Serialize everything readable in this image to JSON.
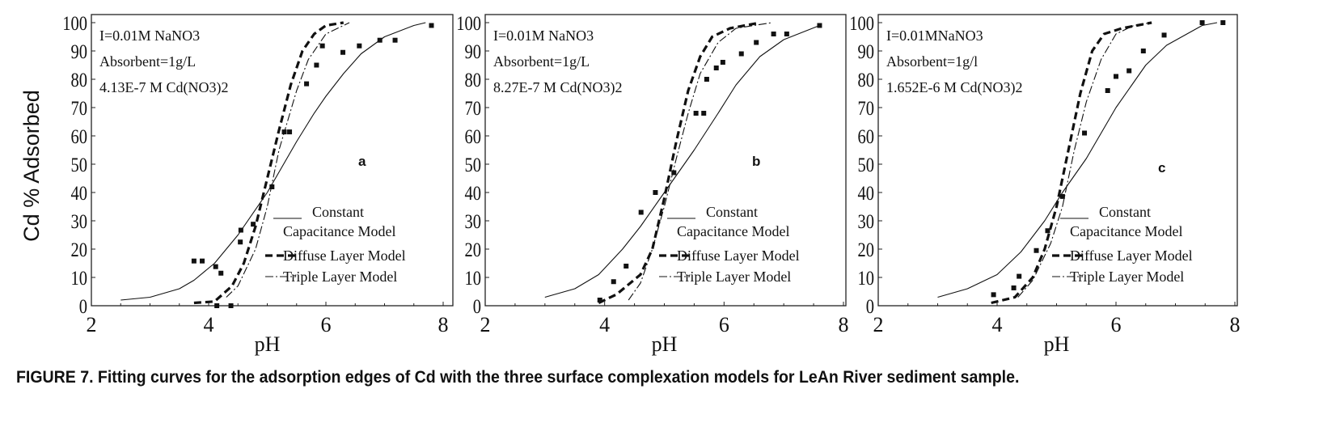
{
  "caption": "FIGURE 7.  Fitting curves for the adsorption edges of Cd with the three surface complexation models for LeAn River sediment sample.",
  "chart_data": [
    {
      "type": "line",
      "panel_label": "a",
      "ylabel": "Cd % Adsorbed",
      "xlabel": "pH",
      "xlim": [
        2,
        8
      ],
      "ylim": [
        0,
        100
      ],
      "xticks": [
        "2",
        "4",
        "6",
        "8"
      ],
      "yticks": [
        "0",
        "10",
        "20",
        "30",
        "40",
        "50",
        "60",
        "70",
        "80",
        "90",
        "100"
      ],
      "annotations": [
        "I=0.01M NaNO3",
        "Absorbent=1g/L",
        "4.13E-7 M Cd(NO3)2"
      ],
      "legend": {
        "position": "bottom-right",
        "entries": [
          "Constant",
          "Capacitance Model",
          "Diffuse Layer Model",
          "Triple Layer Model"
        ]
      },
      "points": {
        "name": "Experimental",
        "x": [
          3.75,
          3.89,
          4.12,
          4.21,
          4.14,
          4.38,
          4.55,
          4.54,
          4.76,
          5.08,
          5.29,
          5.38,
          5.67,
          5.84,
          5.94,
          6.29,
          6.57,
          6.92,
          7.18,
          7.8
        ],
        "y": [
          15.8,
          15.8,
          13.8,
          11.5,
          0,
          0,
          26.7,
          22.5,
          28.8,
          42,
          61.4,
          61.4,
          78.4,
          85,
          91.8,
          89.5,
          91.8,
          93.8,
          93.8,
          99
        ]
      },
      "series": [
        {
          "name": "Constant Capacitance Model",
          "style": "solid",
          "x": [
            2.5,
            3.0,
            3.5,
            3.75,
            4.1,
            4.5,
            5.0,
            5.5,
            5.8,
            6.0,
            6.3,
            6.6,
            7.0,
            7.5,
            7.7
          ],
          "y": [
            2,
            3,
            6,
            9,
            15,
            25,
            40,
            58,
            68,
            74,
            82,
            89,
            95,
            99,
            100
          ]
        },
        {
          "name": "Diffuse Layer Model",
          "style": "dashed",
          "x": [
            3.75,
            4.1,
            4.4,
            4.6,
            4.8,
            5.0,
            5.2,
            5.4,
            5.6,
            5.8,
            6.0,
            6.3
          ],
          "y": [
            1,
            1.5,
            7,
            15,
            28,
            45,
            62,
            78,
            90,
            96,
            99,
            100
          ]
        },
        {
          "name": "Triple Layer Model",
          "style": "dashdot",
          "x": [
            4.3,
            4.5,
            4.8,
            5.0,
            5.2,
            5.5,
            5.7,
            6.0,
            6.4
          ],
          "y": [
            3,
            7,
            20,
            35,
            55,
            76,
            87,
            96,
            100
          ]
        }
      ]
    },
    {
      "type": "line",
      "panel_label": "b",
      "xlabel": "pH",
      "xlim": [
        2,
        8
      ],
      "ylim": [
        0,
        100
      ],
      "xticks": [
        "2",
        "4",
        "6",
        "8"
      ],
      "yticks": [
        "0",
        "10",
        "20",
        "30",
        "40",
        "50",
        "60",
        "70",
        "80",
        "90",
        "100"
      ],
      "annotations": [
        "I=0.01M NaNO3",
        "Absorbent=1g/L",
        "8.27E-7 M Cd(NO3)2"
      ],
      "legend": {
        "position": "bottom-right",
        "entries": [
          "Constant",
          "Capacitance Model",
          "Diffuse Layer Model",
          "Triple Layer Model"
        ]
      },
      "points": {
        "name": "Experimental",
        "x": [
          3.92,
          4.15,
          4.36,
          4.61,
          4.85,
          5.16,
          5.53,
          5.66,
          5.71,
          5.87,
          5.98,
          6.29,
          6.54,
          6.83,
          7.05,
          7.6
        ],
        "y": [
          2,
          8.5,
          14,
          33,
          40,
          47,
          68,
          68,
          80,
          84,
          86,
          89,
          93,
          96,
          96,
          99
        ]
      },
      "series": [
        {
          "name": "Constant Capacitance Model",
          "style": "solid",
          "x": [
            3.0,
            3.5,
            3.9,
            4.3,
            4.6,
            5.0,
            5.5,
            5.9,
            6.2,
            6.6,
            7.0,
            7.6
          ],
          "y": [
            3,
            6,
            11,
            20,
            28,
            40,
            55,
            68,
            78,
            88,
            94,
            99
          ]
        },
        {
          "name": "Diffuse Layer Model",
          "style": "dashed",
          "x": [
            3.9,
            4.2,
            4.6,
            4.8,
            5.0,
            5.2,
            5.4,
            5.6,
            5.8,
            6.1,
            6.6
          ],
          "y": [
            1,
            4,
            11,
            20,
            38,
            58,
            76,
            88,
            95,
            98,
            100
          ]
        },
        {
          "name": "Triple Layer Model",
          "style": "dashdot",
          "x": [
            4.4,
            4.6,
            4.8,
            5.0,
            5.2,
            5.4,
            5.6,
            5.9,
            6.2,
            6.8
          ],
          "y": [
            2,
            8,
            20,
            35,
            52,
            68,
            82,
            93,
            98,
            100
          ]
        }
      ]
    },
    {
      "type": "line",
      "panel_label": "c",
      "xlabel": "pH",
      "xlim": [
        2,
        8
      ],
      "ylim": [
        0,
        100
      ],
      "xticks": [
        "2",
        "4",
        "6",
        "8"
      ],
      "yticks": [
        "0",
        "10",
        "20",
        "30",
        "40",
        "50",
        "60",
        "70",
        "80",
        "90",
        "100"
      ],
      "annotations": [
        "I=0.01MNaNO3",
        "Absorbent=1g/l",
        "1.652E-6 M Cd(NO3)2"
      ],
      "legend": {
        "position": "bottom-right",
        "entries": [
          "Constant",
          "Capacitance Model",
          "Diffuse Layer Model",
          "Triple Layer Model"
        ]
      },
      "points": {
        "name": "Experimental",
        "x": [
          3.94,
          4.28,
          4.37,
          4.66,
          4.85,
          5.1,
          5.47,
          5.86,
          6.0,
          6.22,
          6.46,
          6.81,
          7.45,
          7.8
        ],
        "y": [
          3.9,
          6.3,
          10.4,
          19.5,
          26.5,
          38.6,
          61,
          76,
          81,
          83,
          90,
          95.6,
          100,
          100
        ]
      },
      "series": [
        {
          "name": "Constant Capacitance Model",
          "style": "solid",
          "x": [
            3.0,
            3.5,
            4.0,
            4.4,
            4.8,
            5.1,
            5.5,
            6.0,
            6.5,
            6.85,
            7.45,
            7.7
          ],
          "y": [
            3,
            6,
            11,
            19,
            30,
            40,
            52,
            70,
            85,
            92,
            99,
            100
          ]
        },
        {
          "name": "Diffuse Layer Model",
          "style": "dashed",
          "x": [
            3.9,
            4.3,
            4.6,
            4.8,
            5.0,
            5.2,
            5.4,
            5.6,
            5.8,
            6.1,
            6.6
          ],
          "y": [
            1,
            3,
            10,
            20,
            35,
            55,
            75,
            90,
            96,
            98,
            100
          ]
        },
        {
          "name": "Triple Layer Model",
          "style": "dashdot",
          "x": [
            4.35,
            4.6,
            4.9,
            5.1,
            5.3,
            5.5,
            5.75,
            6.0,
            6.3,
            6.6
          ],
          "y": [
            3,
            9,
            22,
            35,
            55,
            72,
            87,
            96,
            99,
            100
          ]
        }
      ]
    }
  ]
}
